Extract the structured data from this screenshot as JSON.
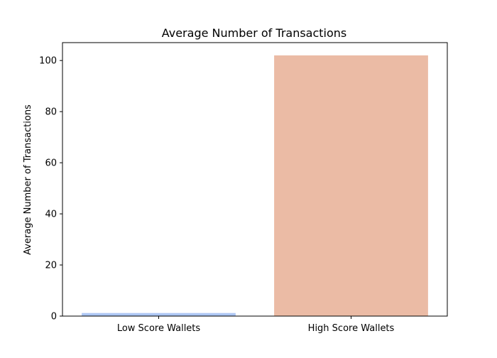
{
  "chart_data": {
    "type": "bar",
    "title": "Average Number of Transactions",
    "xlabel": "",
    "ylabel": "Average Number of Transactions",
    "categories": [
      "Low Score Wallets",
      "High Score Wallets"
    ],
    "values": [
      1.2,
      102.0
    ],
    "colors": [
      "#aec7f4",
      "#ebbba5"
    ],
    "ylim": [
      0,
      107
    ],
    "yticks": [
      0,
      20,
      40,
      60,
      80,
      100
    ],
    "grid": false,
    "legend": "none"
  }
}
